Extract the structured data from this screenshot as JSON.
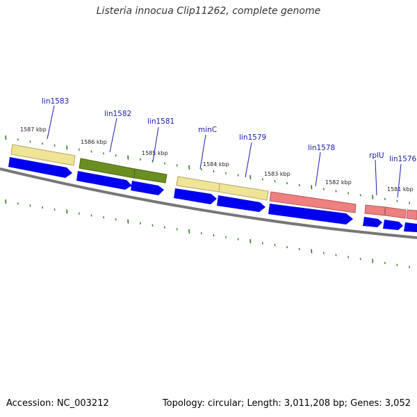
{
  "title": "Listeria innocua Clip11262, complete genome",
  "footer": {
    "accession": "Accession: NC_003212",
    "summary": "Topology: circular; Length: 3,011,208 bp; Genes: 3,052"
  },
  "colors": {
    "yellow_feature": "#f0e496",
    "green_feature": "#6b8e23",
    "red_feature": "#ee8080",
    "cds_arrow": "#0000ee",
    "backbone": "#777777",
    "tick": "#2e7d1a",
    "gene_label": "#1a1aaa"
  },
  "kbp_labels": [
    "1587 kbp",
    "1586 kbp",
    "1585 kbp",
    "1584 kbp",
    "1583 kbp",
    "1582 kbp",
    "1581 kbp"
  ],
  "gene_labels": [
    "lin1583",
    "lin1582",
    "lin1581",
    "minC",
    "lin1579",
    "lin1578",
    "rplU",
    "lin1576"
  ]
}
